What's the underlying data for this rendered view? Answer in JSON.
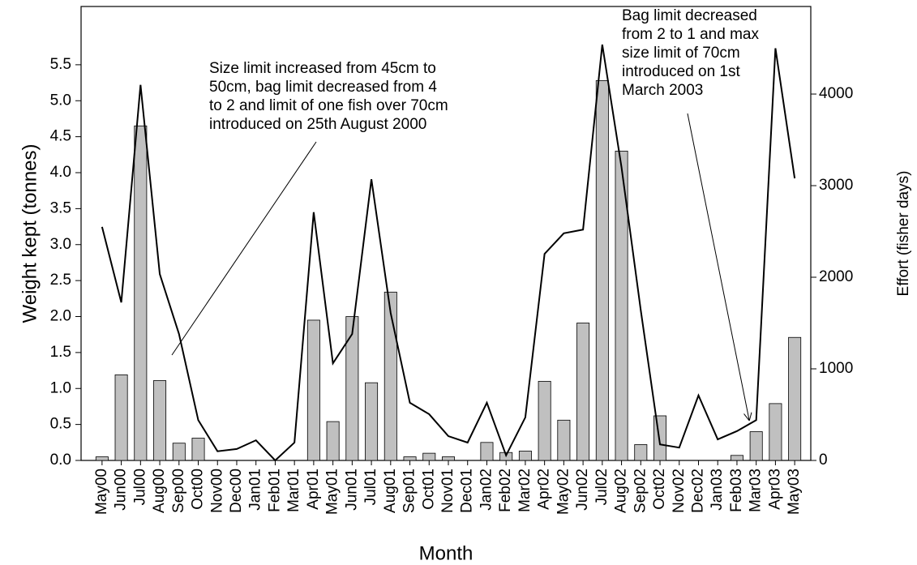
{
  "chart_data": {
    "type": "bar_line",
    "xlabel": "Month",
    "ylabel": "Weight kept (tonnes)",
    "y2label": "Effort (fisher days)",
    "categories": [
      "May00",
      "Jun00",
      "Jul00",
      "Aug00",
      "Sep00",
      "Oct00",
      "Nov00",
      "Dec00",
      "Jan01",
      "Feb01",
      "Mar01",
      "Apr01",
      "May01",
      "Jun01",
      "Jul01",
      "Aug01",
      "Sep01",
      "Oct01",
      "Nov01",
      "Dec01",
      "Jan02",
      "Feb02",
      "Mar02",
      "Apr02",
      "May02",
      "Jun02",
      "Jul02",
      "Aug02",
      "Sep02",
      "Oct02",
      "Nov02",
      "Dec02",
      "Jan03",
      "Feb03",
      "Mar03",
      "Apr03",
      "May03"
    ],
    "series": [
      {
        "type": "bar",
        "color": "#c0c0c0",
        "values": [
          0.05,
          1.19,
          4.65,
          1.11,
          0.24,
          0.31,
          0,
          0,
          0,
          0,
          0,
          1.95,
          0.54,
          2.0,
          1.08,
          2.34,
          0.05,
          0.1,
          0.05,
          0,
          0.25,
          0.11,
          0.13,
          1.1,
          0.56,
          1.91,
          5.28,
          4.3,
          0.22,
          0.62,
          0,
          0,
          0,
          0.07,
          0.4,
          0.79,
          1.71
        ]
      },
      {
        "type": "line",
        "color": "#000000",
        "axis": "y2",
        "values": [
          2550,
          1725,
          4100,
          2035,
          1380,
          440,
          100,
          125,
          220,
          0,
          195,
          2710,
          1060,
          1380,
          3070,
          1610,
          630,
          505,
          265,
          195,
          630,
          55,
          470,
          2255,
          2480,
          2520,
          4540,
          3200,
          1640,
          175,
          140,
          710,
          230,
          320,
          440,
          4500,
          3080
        ]
      }
    ],
    "ylim": [
      0,
      6.31
    ],
    "yticks": [
      {
        "value": 0,
        "label": "0.0"
      },
      0.5,
      {
        "value": 1,
        "label": "1.0"
      },
      1.5,
      {
        "value": 2,
        "label": "2.0"
      },
      2.5,
      {
        "value": 3,
        "label": "3.0"
      },
      3.5,
      {
        "value": 4,
        "label": "4.0"
      },
      4.5,
      {
        "value": 5,
        "label": "5.0"
      },
      5.5
    ],
    "y2lim": [
      0,
      4956
    ],
    "y2ticks": [
      0,
      1000,
      2000,
      3000,
      4000
    ],
    "annotations": [
      {
        "lines": [
          "Size limit increased from 45cm to",
          "50cm, bag limit decreased from 4",
          "to 2 and limit of one fish over 70cm",
          "introduced on 25th August 2000"
        ]
      },
      {
        "lines": [
          "Bag limit decreased",
          "from 2 to 1 and max",
          "size limit of 70cm",
          "introduced on 1st",
          "March 2003"
        ]
      }
    ]
  }
}
